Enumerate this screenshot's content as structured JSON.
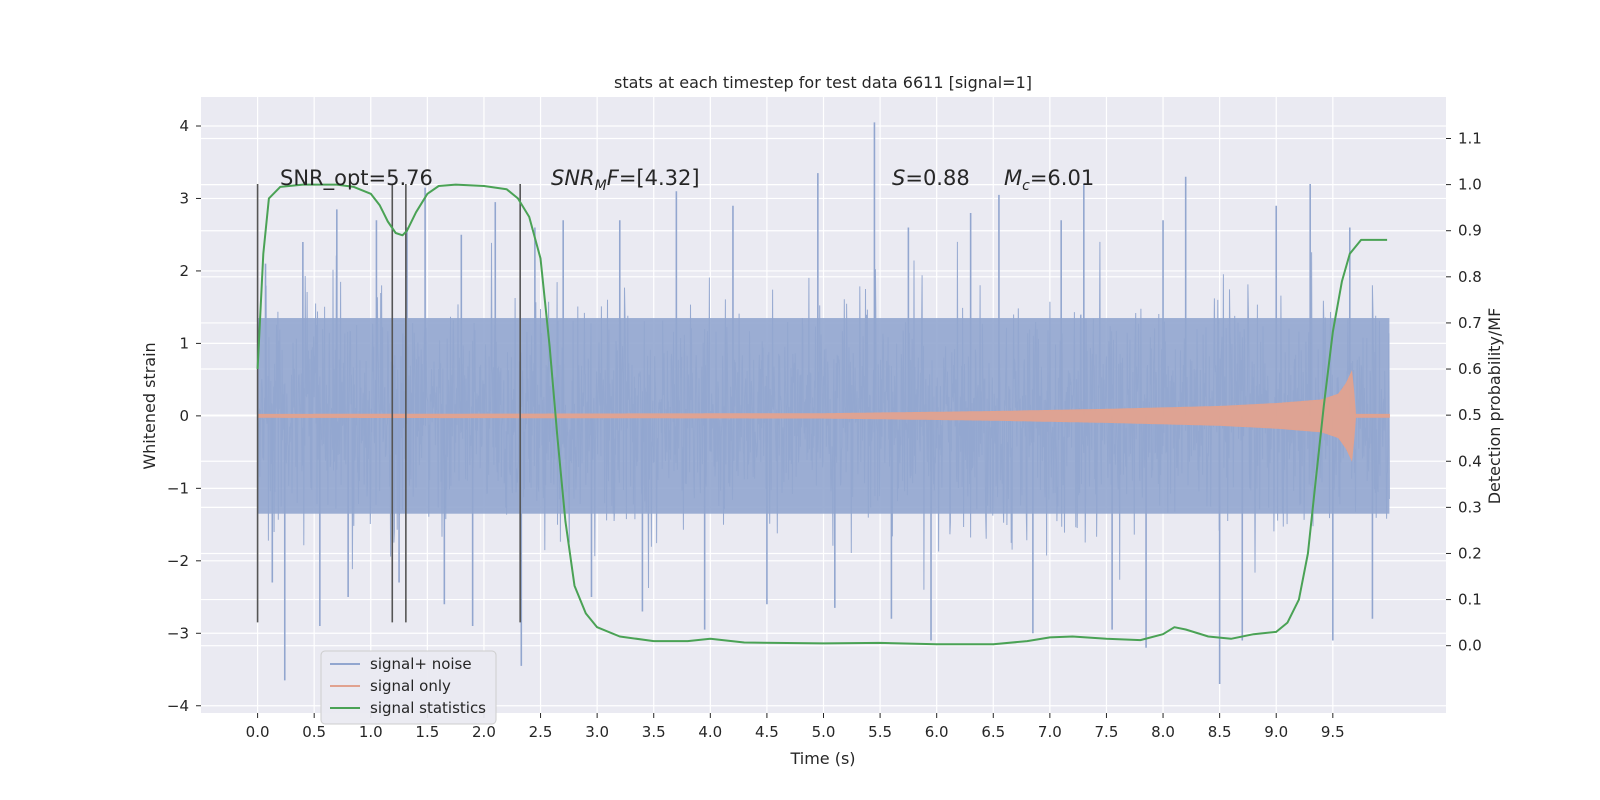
{
  "chart_data": {
    "type": "line",
    "title": "stats at each timestep for test data 6611 [signal=1]",
    "xlabel": "Time (s)",
    "ylabel": "Whitened strain",
    "y2label": "Detection probability/MF",
    "xlim": [
      -0.5,
      10.5
    ],
    "ylim": [
      -4.1,
      4.4
    ],
    "y2lim": [
      -0.146,
      1.19
    ],
    "x_ticks": [
      0.0,
      0.5,
      1.0,
      1.5,
      2.0,
      2.5,
      3.0,
      3.5,
      4.0,
      4.5,
      5.0,
      5.5,
      6.0,
      6.5,
      7.0,
      7.5,
      8.0,
      8.5,
      9.0,
      9.5
    ],
    "x_tick_labels": [
      "0.0",
      "0.5",
      "1.0",
      "1.5",
      "2.0",
      "2.5",
      "3.0",
      "3.5",
      "4.0",
      "4.5",
      "5.0",
      "5.5",
      "6.0",
      "6.5",
      "7.0",
      "7.5",
      "8.0",
      "8.5",
      "9.0",
      "9.5"
    ],
    "y_ticks": [
      4,
      3,
      2,
      1,
      0,
      -1,
      -2,
      -3,
      -4
    ],
    "y_tick_labels": [
      "4",
      "3",
      "2",
      "1",
      "0",
      "−1",
      "−2",
      "−3",
      "−4"
    ],
    "y2_ticks": [
      1.1,
      1.0,
      0.9,
      0.8,
      0.7,
      0.6,
      0.5,
      0.4,
      0.3,
      0.2,
      0.1,
      0.0
    ],
    "y2_tick_labels": [
      "1.1",
      "1.0",
      "0.9",
      "0.8",
      "0.7",
      "0.6",
      "0.5",
      "0.4",
      "0.3",
      "0.2",
      "0.1",
      "0.0"
    ],
    "grid": true,
    "legend_position": "lower-left",
    "series": [
      {
        "name": "signal+ noise",
        "color": "#92a6cf",
        "axis": "left",
        "t_range": [
          0.0,
          10.0
        ],
        "approx_envelope": 1.35,
        "peaks": [
          [
            0.07,
            2.1
          ],
          [
            0.13,
            -2.3
          ],
          [
            0.24,
            -3.65
          ],
          [
            0.4,
            2.4
          ],
          [
            0.55,
            -2.9
          ],
          [
            0.7,
            2.85
          ],
          [
            0.8,
            -2.5
          ],
          [
            1.05,
            2.7
          ],
          [
            1.25,
            -2.3
          ],
          [
            1.32,
            2.6
          ],
          [
            1.48,
            3.15
          ],
          [
            1.65,
            -2.6
          ],
          [
            1.8,
            2.5
          ],
          [
            1.9,
            -2.9
          ],
          [
            2.1,
            2.95
          ],
          [
            2.33,
            -3.45
          ],
          [
            2.45,
            2.6
          ],
          [
            2.7,
            2.7
          ],
          [
            2.95,
            -2.5
          ],
          [
            3.2,
            2.7
          ],
          [
            3.4,
            -2.7
          ],
          [
            3.7,
            3.1
          ],
          [
            3.95,
            -2.95
          ],
          [
            4.2,
            2.9
          ],
          [
            4.5,
            -2.6
          ],
          [
            4.95,
            3.35
          ],
          [
            5.1,
            -2.65
          ],
          [
            5.45,
            4.05
          ],
          [
            5.6,
            -2.8
          ],
          [
            5.75,
            2.6
          ],
          [
            5.95,
            -3.1
          ],
          [
            6.3,
            2.8
          ],
          [
            6.55,
            3.05
          ],
          [
            6.85,
            -3.0
          ],
          [
            7.1,
            2.7
          ],
          [
            7.3,
            3.2
          ],
          [
            7.55,
            -2.95
          ],
          [
            7.85,
            -3.2
          ],
          [
            8.0,
            2.7
          ],
          [
            8.2,
            3.3
          ],
          [
            8.5,
            -3.7
          ],
          [
            8.7,
            -3.1
          ],
          [
            9.0,
            2.9
          ],
          [
            9.3,
            3.2
          ],
          [
            9.5,
            -3.1
          ],
          [
            9.65,
            2.6
          ],
          [
            9.85,
            -2.8
          ]
        ]
      },
      {
        "name": "signal only",
        "color": "#e1a28f",
        "axis": "left",
        "t_range": [
          0.0,
          10.0
        ],
        "amplitude_envelope": [
          [
            0.0,
            0.02
          ],
          [
            5.0,
            0.03
          ],
          [
            6.5,
            0.06
          ],
          [
            7.5,
            0.09
          ],
          [
            8.5,
            0.13
          ],
          [
            9.0,
            0.17
          ],
          [
            9.4,
            0.22
          ],
          [
            9.55,
            0.3
          ],
          [
            9.62,
            0.45
          ],
          [
            9.67,
            0.62
          ],
          [
            9.7,
            0.02
          ],
          [
            10.0,
            0.02
          ]
        ]
      },
      {
        "name": "signal statistics",
        "color": "#4aa255",
        "axis": "right",
        "points": [
          [
            0.0,
            0.6
          ],
          [
            0.05,
            0.85
          ],
          [
            0.1,
            0.97
          ],
          [
            0.2,
            0.995
          ],
          [
            0.4,
            1.0
          ],
          [
            0.7,
            1.0
          ],
          [
            0.85,
            0.995
          ],
          [
            1.0,
            0.98
          ],
          [
            1.08,
            0.955
          ],
          [
            1.15,
            0.92
          ],
          [
            1.22,
            0.895
          ],
          [
            1.28,
            0.89
          ],
          [
            1.32,
            0.9
          ],
          [
            1.4,
            0.94
          ],
          [
            1.5,
            0.98
          ],
          [
            1.6,
            0.997
          ],
          [
            1.75,
            1.0
          ],
          [
            2.0,
            0.997
          ],
          [
            2.2,
            0.99
          ],
          [
            2.3,
            0.97
          ],
          [
            2.4,
            0.93
          ],
          [
            2.5,
            0.84
          ],
          [
            2.58,
            0.65
          ],
          [
            2.65,
            0.45
          ],
          [
            2.72,
            0.27
          ],
          [
            2.8,
            0.13
          ],
          [
            2.9,
            0.07
          ],
          [
            3.0,
            0.04
          ],
          [
            3.2,
            0.02
          ],
          [
            3.5,
            0.01
          ],
          [
            3.8,
            0.01
          ],
          [
            4.0,
            0.015
          ],
          [
            4.3,
            0.007
          ],
          [
            5.0,
            0.005
          ],
          [
            5.5,
            0.006
          ],
          [
            6.0,
            0.003
          ],
          [
            6.5,
            0.003
          ],
          [
            6.8,
            0.01
          ],
          [
            7.0,
            0.018
          ],
          [
            7.2,
            0.02
          ],
          [
            7.5,
            0.015
          ],
          [
            7.8,
            0.012
          ],
          [
            8.0,
            0.025
          ],
          [
            8.1,
            0.04
          ],
          [
            8.2,
            0.035
          ],
          [
            8.4,
            0.02
          ],
          [
            8.6,
            0.015
          ],
          [
            8.8,
            0.025
          ],
          [
            9.0,
            0.03
          ],
          [
            9.1,
            0.05
          ],
          [
            9.2,
            0.1
          ],
          [
            9.28,
            0.2
          ],
          [
            9.35,
            0.36
          ],
          [
            9.42,
            0.52
          ],
          [
            9.5,
            0.68
          ],
          [
            9.58,
            0.79
          ],
          [
            9.65,
            0.85
          ],
          [
            9.75,
            0.88
          ],
          [
            9.9,
            0.88
          ],
          [
            9.98,
            0.88
          ]
        ]
      }
    ],
    "vertical_markers": [
      {
        "x": 0.0,
        "ytop": 3.2,
        "ybottom": -2.85
      },
      {
        "x": 1.19,
        "ytop": 3.2,
        "ybottom": -2.85
      },
      {
        "x": 1.31,
        "ytop": 3.2,
        "ybottom": -2.85
      },
      {
        "x": 2.32,
        "ytop": 3.2,
        "ybottom": -2.85
      }
    ],
    "annotations": [
      {
        "key": "snr_opt",
        "x": 0.2,
        "y": 3.3,
        "text": "SNR_opt=5.76"
      },
      {
        "key": "snr_mf",
        "x": 2.6,
        "y": 3.3,
        "text": "SNRMF=[4.32]"
      },
      {
        "key": "s",
        "x": 5.6,
        "y": 3.3,
        "text": "S=0.88"
      },
      {
        "key": "mc",
        "x": 6.6,
        "y": 3.3,
        "text": "Mc=6.01"
      }
    ]
  },
  "annot_parts": {
    "snr_opt": "SNR_opt=5.76",
    "snr_mf_main": "SNR",
    "snr_mf_sub": "M",
    "snr_mf_tail_it": "F",
    "snr_mf_value": "=[4.32]",
    "s_symbol": "S",
    "s_value": "=0.88",
    "mc_symbol": "M",
    "mc_sub": "c",
    "mc_value": "=6.01"
  },
  "legend": {
    "items": [
      {
        "label": "signal+ noise",
        "color": "#92a6cf"
      },
      {
        "label": "signal only",
        "color": "#e1a28f"
      },
      {
        "label": "signal statistics",
        "color": "#4aa255"
      }
    ]
  },
  "colors": {
    "plot_background": "#eaeaf2",
    "grid": "#ffffff",
    "marker": "#555555"
  }
}
